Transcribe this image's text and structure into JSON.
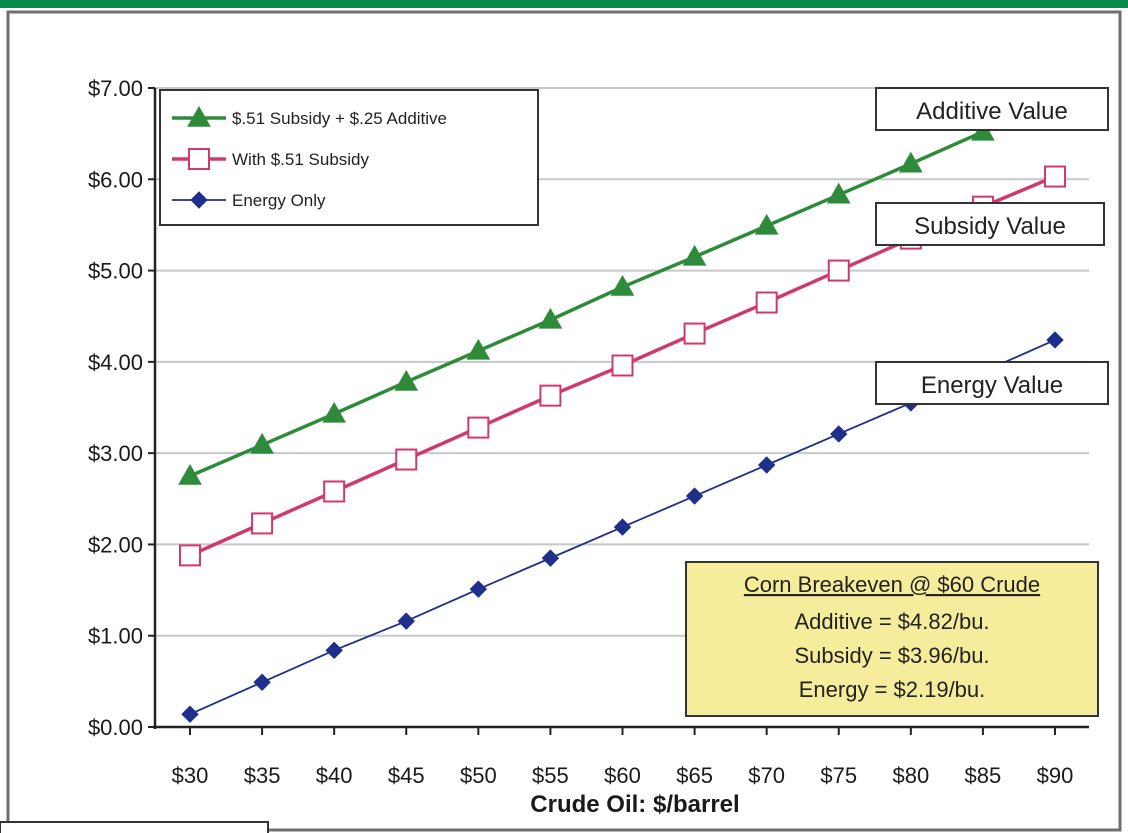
{
  "chart_data": {
    "type": "line",
    "categories": [
      "$30",
      "$35",
      "$40",
      "$45",
      "$50",
      "$55",
      "$60",
      "$65",
      "$70",
      "$75",
      "$80",
      "$85",
      "$90"
    ],
    "x": [
      30,
      35,
      40,
      45,
      50,
      55,
      60,
      65,
      70,
      75,
      80,
      85,
      90
    ],
    "ylim": [
      0,
      7
    ],
    "yticks": [
      "$0.00",
      "$1.00",
      "$2.00",
      "$3.00",
      "$4.00",
      "$5.00",
      "$6.00",
      "$7.00"
    ],
    "xlabel": "Crude Oil: $/barrel",
    "ylabel": "",
    "title": "",
    "grid": true,
    "legend_position": "top-left",
    "series": [
      {
        "name": "$.51 Subsidy + $.25 Additive",
        "marker": "triangle",
        "color": "#2e8b3a",
        "values": [
          2.75,
          3.09,
          3.43,
          3.78,
          4.12,
          4.46,
          4.82,
          5.15,
          5.49,
          5.83,
          6.17,
          6.52,
          null
        ]
      },
      {
        "name": "With $.51 Subsidy",
        "marker": "square",
        "color": "#d03a6a",
        "values": [
          1.88,
          2.23,
          2.58,
          2.93,
          3.28,
          3.63,
          3.96,
          4.31,
          4.65,
          5.0,
          5.35,
          5.7,
          6.03
        ]
      },
      {
        "name": "Energy Only",
        "marker": "diamond",
        "color": "#1f2f8c",
        "values": [
          0.14,
          0.49,
          0.84,
          1.16,
          1.51,
          1.85,
          2.19,
          2.53,
          2.87,
          3.21,
          3.55,
          3.89,
          4.24
        ]
      }
    ],
    "annotations": [
      {
        "text": "Additive Value"
      },
      {
        "text": "Subsidy Value"
      },
      {
        "text": "Energy Value"
      }
    ],
    "info_box": {
      "title": "Corn Breakeven @ $60 Crude",
      "lines": [
        "Additive = $4.82/bu.",
        "Subsidy = $3.96/bu.",
        "Energy = $2.19/bu."
      ]
    }
  }
}
